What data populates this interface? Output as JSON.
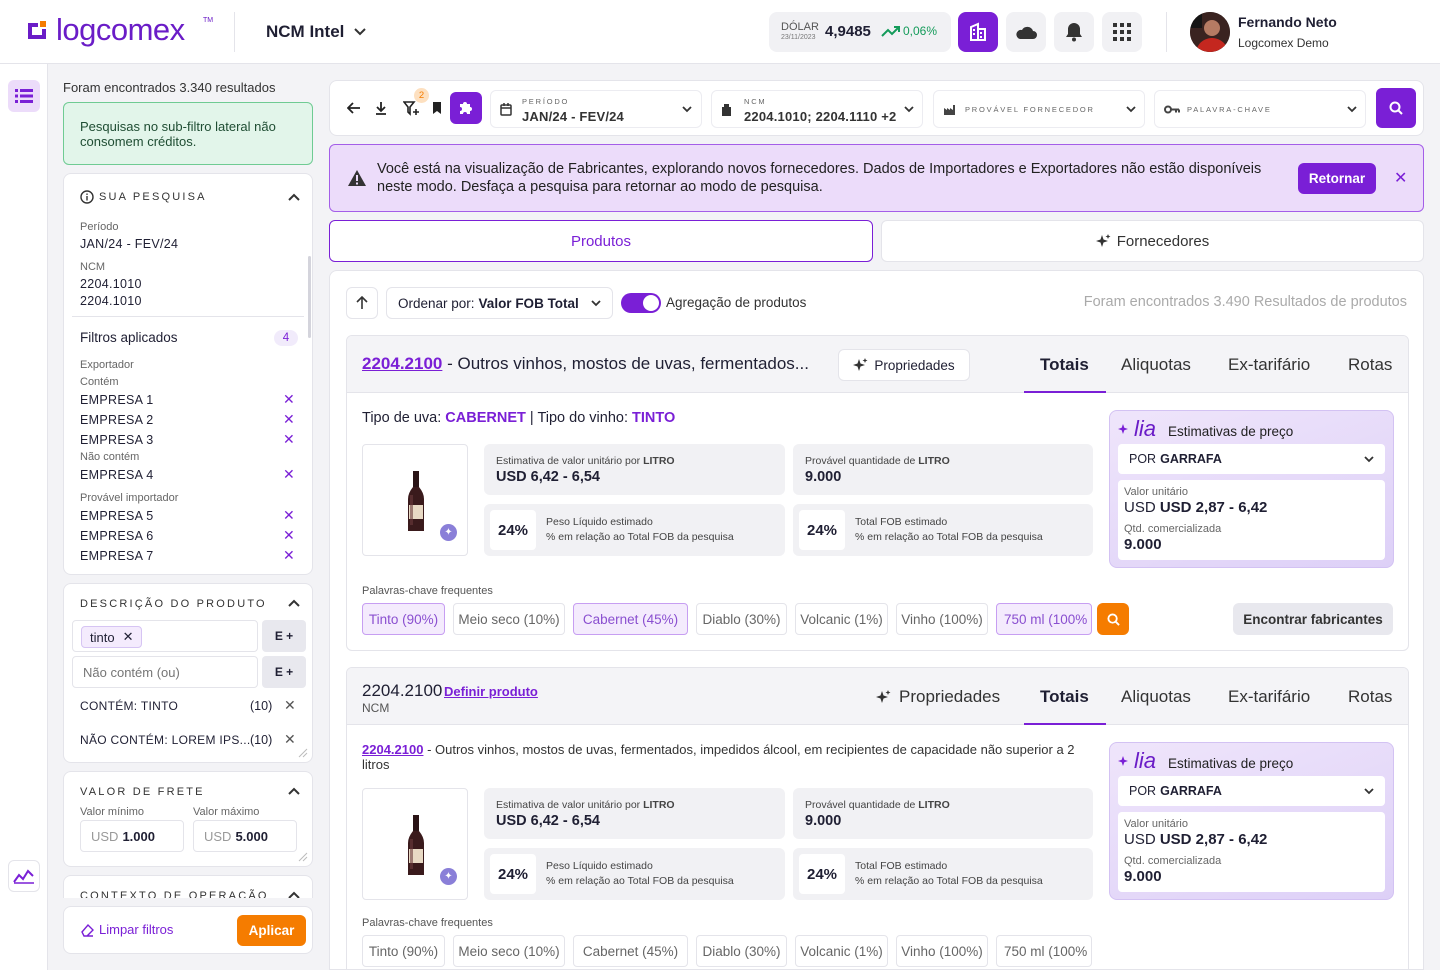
{
  "header": {
    "brand": "logcomex",
    "product_selector": "NCM Intel",
    "dolar_label": "DÓLAR",
    "dolar_date": "23/11/2023",
    "dolar_value": "4,9485",
    "dolar_variation": "0,06%",
    "user_name": "Fernando Neto",
    "user_org": "Logcomex Demo"
  },
  "sidebar": {
    "results_count": "Foram encontrados 3.340 resultados",
    "info_text": "Pesquisas no sub-filtro lateral não consomem créditos.",
    "search": {
      "title": "SUA PESQUISA",
      "period_label": "Período",
      "period_value": "JAN/24 - FEV/24",
      "ncm_label": "NCM",
      "ncm_values": [
        "2204.1010",
        "2204.1010"
      ],
      "applied_label": "Filtros aplicados",
      "applied_count": "4",
      "exporter_label": "Exportador",
      "contains_label": "Contém",
      "exporter_contains": [
        "EMPRESA 1",
        "EMPRESA 2",
        "EMPRESA 3"
      ],
      "not_contains_label": "Não contém",
      "exporter_not_contains": [
        "EMPRESA 4"
      ],
      "importer_label": "Provável importador",
      "importers": [
        "EMPRESA 5",
        "EMPRESA 6",
        "EMPRESA 7"
      ]
    },
    "description": {
      "title": "DESCRIÇÃO DO PRODUTO",
      "chip": "tinto",
      "and_button": "E +",
      "not_contains_placeholder": "Não contém (ou)",
      "rows": [
        {
          "label": "CONTÉM: TINTO",
          "count": "(10)"
        },
        {
          "label": "NÃO CONTÉM: LOREM IPS...",
          "count": "(10)"
        }
      ]
    },
    "freight": {
      "title": "VALOR DE FRETE",
      "min_label": "Valor mínimo",
      "max_label": "Valor máximo",
      "currency": "USD",
      "min_value": "1.000",
      "max_value": "5.000"
    },
    "context_title": "CONTEXTO DE OPERAÇÃO",
    "clear_label": "Limpar filtros",
    "apply_label": "Aplicar"
  },
  "toolbar": {
    "filter_badge": "2",
    "period_label": "PERÍODO",
    "period_value": "JAN/24 - FEV/24",
    "ncm_label": "NCM",
    "ncm_value": "2204.1010; 2204.1110 +2",
    "supplier_label": "PROVÁVEL FORNECEDOR",
    "keyword_label": "PALAVRA-CHAVE"
  },
  "banner": {
    "text": "Você está na visualização de Fabricantes, explorando novos fornecedores. Dados de Importadores e Exportadores não estão disponíveis neste modo. Desfaça a pesquisa para retornar ao modo de pesquisa.",
    "button": "Retornar"
  },
  "view_tabs": {
    "products": "Produtos",
    "suppliers": "Fornecedores"
  },
  "results": {
    "sort_prefix": "Ordenar por:",
    "sort_value": "Valor FOB Total",
    "aggregation_label": "Agregação de produtos",
    "count_text": "Foram encontrados 3.490 Resultados de produtos"
  },
  "product_tabs": [
    "Totais",
    "Aliquotas",
    "Ex-tarifário",
    "Rotas"
  ],
  "card1": {
    "ncm": "2204.2100",
    "title_rest": " - Outros vinhos, mostos de uvas, fermentados...",
    "props_button": "Propriedades",
    "grape_label": "Tipo de uva:",
    "grape_value": "CABERNET",
    "wine_label": "Tipo do vinho:",
    "wine_value": "TINTO"
  },
  "card2": {
    "ncm_title": "2204.2100",
    "define_link": "Definir produto",
    "ncm_caption": "NCM",
    "props_tab": "Propriedades",
    "desc_ncm": "2204.2100",
    "desc_text": "- Outros vinhos, mostos de uvas, fermentados, impedidos álcool, em recipientes de capacidade não superior a 2 litros"
  },
  "stats": {
    "unit_value_label": "Estimativa de valor unitário por",
    "unit_value_unit": "LITRO",
    "unit_value": "USD 6,42 - 6,54",
    "qty_label": "Provável quantidade de",
    "qty_unit": "LITRO",
    "qty_value": "9.000",
    "weight_pct": "24%",
    "weight_label": "Peso Líquido estimado",
    "weight_sub": "% em relação ao Total FOB da pesquisa",
    "fob_pct": "24%",
    "fob_label": "Total FOB estimado",
    "fob_sub": "% em relação ao Total FOB da pesquisa"
  },
  "lia": {
    "brand": "lia",
    "title": "Estimativas de preço",
    "per_prefix": "POR",
    "per_value": "GARRAFA",
    "unit_label": "Valor unitário",
    "unit_value": "USD 2,87 - 6,42",
    "qty_label": "Qtd. comercializada",
    "qty_value": "9.000"
  },
  "keywords": {
    "title": "Palavras-chave frequentes",
    "items": [
      "Tinto (90%)",
      "Meio seco (10%)",
      "Cabernet (45%)",
      "Diablo (30%)",
      "Volcanic (1%)",
      "Vinho (100%)",
      "750 ml (100%"
    ],
    "find_button": "Encontrar fabricantes"
  },
  "colors": {
    "brand": "#7a1fd6",
    "success": "#149b5a",
    "warning": "#f57c00",
    "banner_bg": "#ecdcfa"
  }
}
